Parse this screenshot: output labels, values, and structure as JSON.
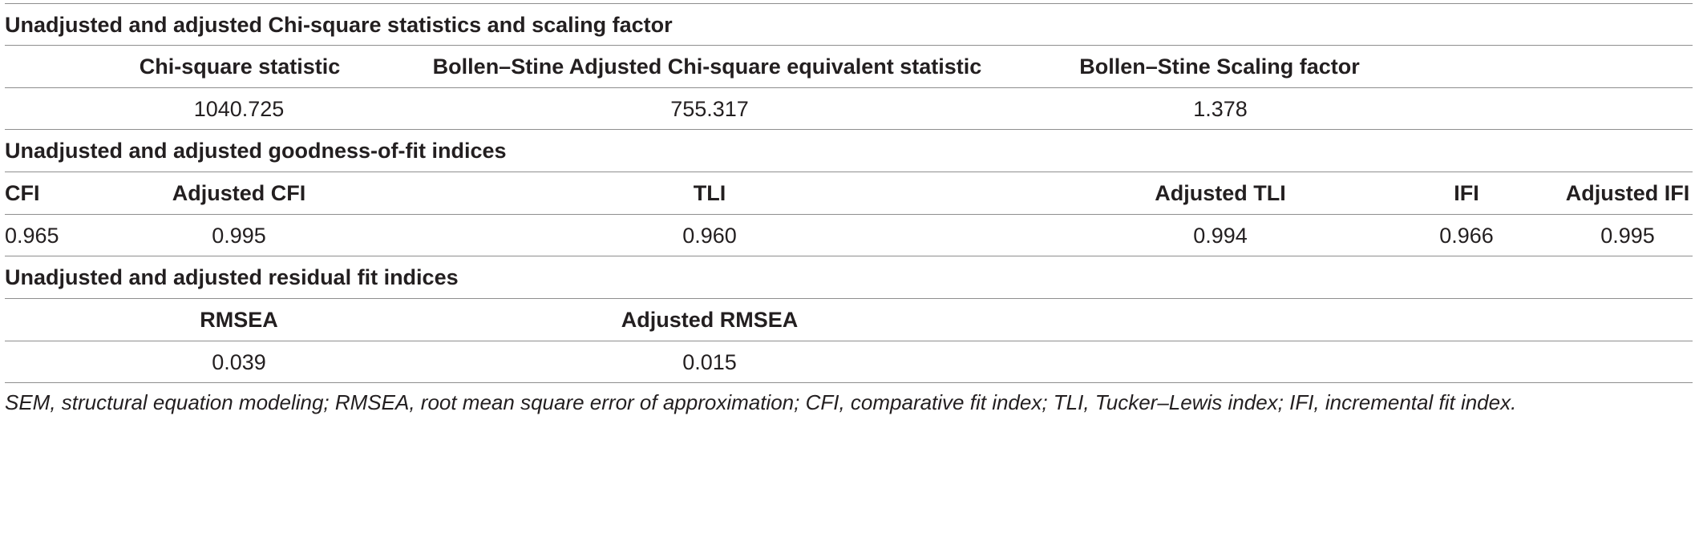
{
  "sections": [
    {
      "title": "Unadjusted and adjusted Chi-square statistics and scaling factor",
      "headers": [
        "Chi-square statistic",
        "Bollen–Stine Adjusted Chi-square equivalent statistic",
        "Bollen–Stine Scaling factor"
      ],
      "values": [
        "1040.725",
        "755.317",
        "1.378"
      ]
    },
    {
      "title": "Unadjusted and adjusted goodness-of-fit indices",
      "headers": [
        "CFI",
        "Adjusted CFI",
        "TLI",
        "Adjusted TLI",
        "IFI",
        "Adjusted IFI"
      ],
      "values": [
        "0.965",
        "0.995",
        "0.960",
        "0.994",
        "0.966",
        "0.995"
      ]
    },
    {
      "title": "Unadjusted and adjusted residual fit indices",
      "headers": [
        "RMSEA",
        "Adjusted RMSEA"
      ],
      "values": [
        "0.039",
        "0.015"
      ]
    }
  ],
  "footnote": "SEM, structural equation modeling; RMSEA, root mean square error of approximation; CFI, comparative fit index; TLI, Tucker–Lewis index; IFI, incremental fit index."
}
